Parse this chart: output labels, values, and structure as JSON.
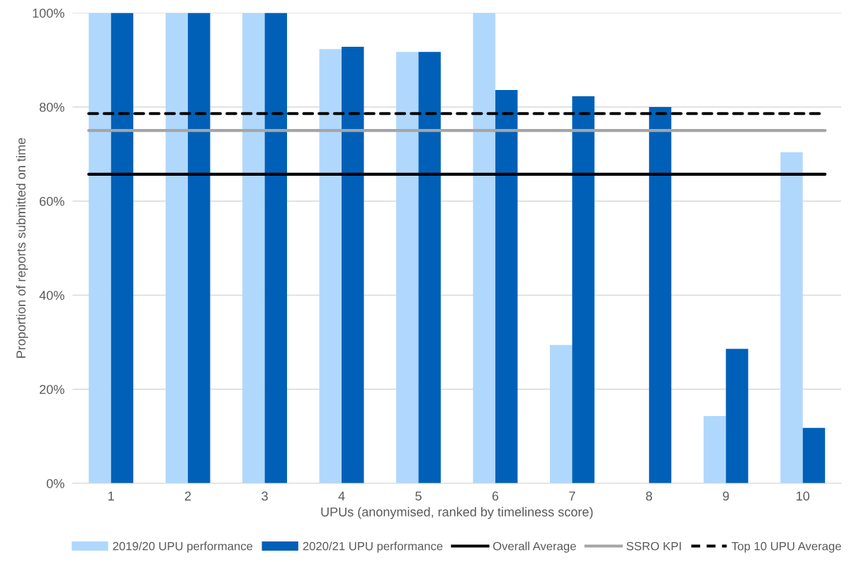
{
  "chart_data": {
    "type": "bar",
    "xlabel": "UPUs (anonymised, ranked by timeliness score)",
    "ylabel": "Proportion of reports submitted on time",
    "categories": [
      "1",
      "2",
      "3",
      "4",
      "5",
      "6",
      "7",
      "8",
      "9",
      "10"
    ],
    "series": [
      {
        "name": "2019/20 UPU performance",
        "color": "#b0d8fc",
        "values": [
          100,
          100,
          100,
          92.3,
          91.7,
          100,
          29.4,
          0,
          14.3,
          70.4
        ]
      },
      {
        "name": "2020/21 UPU performance",
        "color": "#0060b8",
        "values": [
          100,
          100,
          100,
          92.8,
          91.7,
          83.6,
          82.3,
          80,
          28.6,
          11.8
        ]
      }
    ],
    "ref_lines": [
      {
        "axis": "y",
        "value": 65.7,
        "label": "Overall Average",
        "color": "#000000",
        "line_style": "solid"
      },
      {
        "axis": "y",
        "value": 75,
        "label": "SSRO KPI",
        "color": "#a5a5a5",
        "line_style": "solid"
      },
      {
        "axis": "y",
        "value": 78.6,
        "label": "Top 10 UPU Average",
        "color": "#000000",
        "line_style": "dashed"
      }
    ],
    "ylim": [
      0,
      100
    ],
    "yticks": [
      {
        "value": 0,
        "label": "0%"
      },
      {
        "value": 20,
        "label": "20%"
      },
      {
        "value": 40,
        "label": "40%"
      },
      {
        "value": 60,
        "label": "60%"
      },
      {
        "value": 80,
        "label": "80%"
      },
      {
        "value": 100,
        "label": "100%"
      }
    ],
    "grid": "y",
    "legend": "bottom"
  }
}
